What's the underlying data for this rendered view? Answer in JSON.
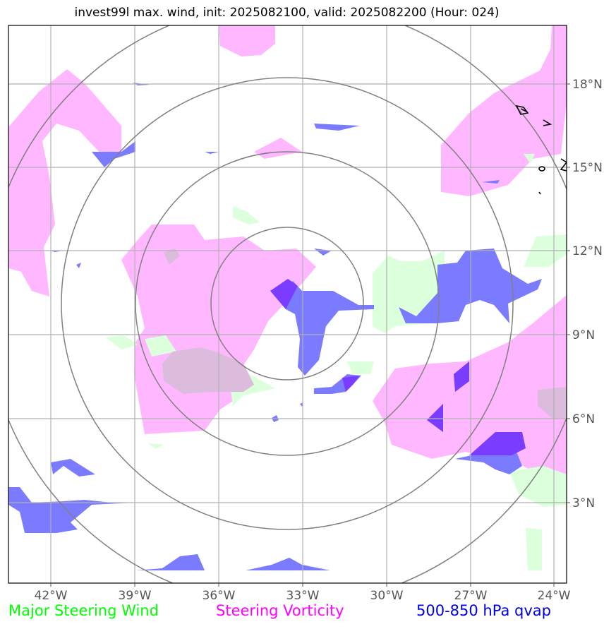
{
  "title": "invest99l max. wind, init: 2025082100, valid: 2025082200 (Hour: 024)",
  "axes": {
    "x_ticks": [
      "42°W",
      "39°W",
      "36°W",
      "33°W",
      "30°W",
      "27°W",
      "24°W"
    ],
    "y_ticks": [
      "18°N",
      "15°N",
      "12°N",
      "9°N",
      "6°N",
      "3°N"
    ]
  },
  "legend": [
    {
      "label": "Major Steering Wind",
      "color": "#00ff00"
    },
    {
      "label": "Steering Vorticity",
      "color": "#ff00ff"
    },
    {
      "label": "500-850 hPa qvap",
      "color": "#0000e0"
    }
  ],
  "colors": {
    "vorticity_fill": "#ffb8ff",
    "wind_fill": "#dcffdc",
    "qvap_fill": "#7b7bff",
    "qvap_strong": "#7a3cff",
    "overlap_fill": "#dcbcdc",
    "grid": "#b0b0b0",
    "range_rings": "#808080"
  },
  "range_rings": {
    "count": 4,
    "center": [
      "33.5°W",
      "10°N"
    ]
  },
  "map_extent": {
    "lon": [
      -43.5,
      -23.5
    ],
    "lat": [
      0.2,
      19.9
    ]
  }
}
